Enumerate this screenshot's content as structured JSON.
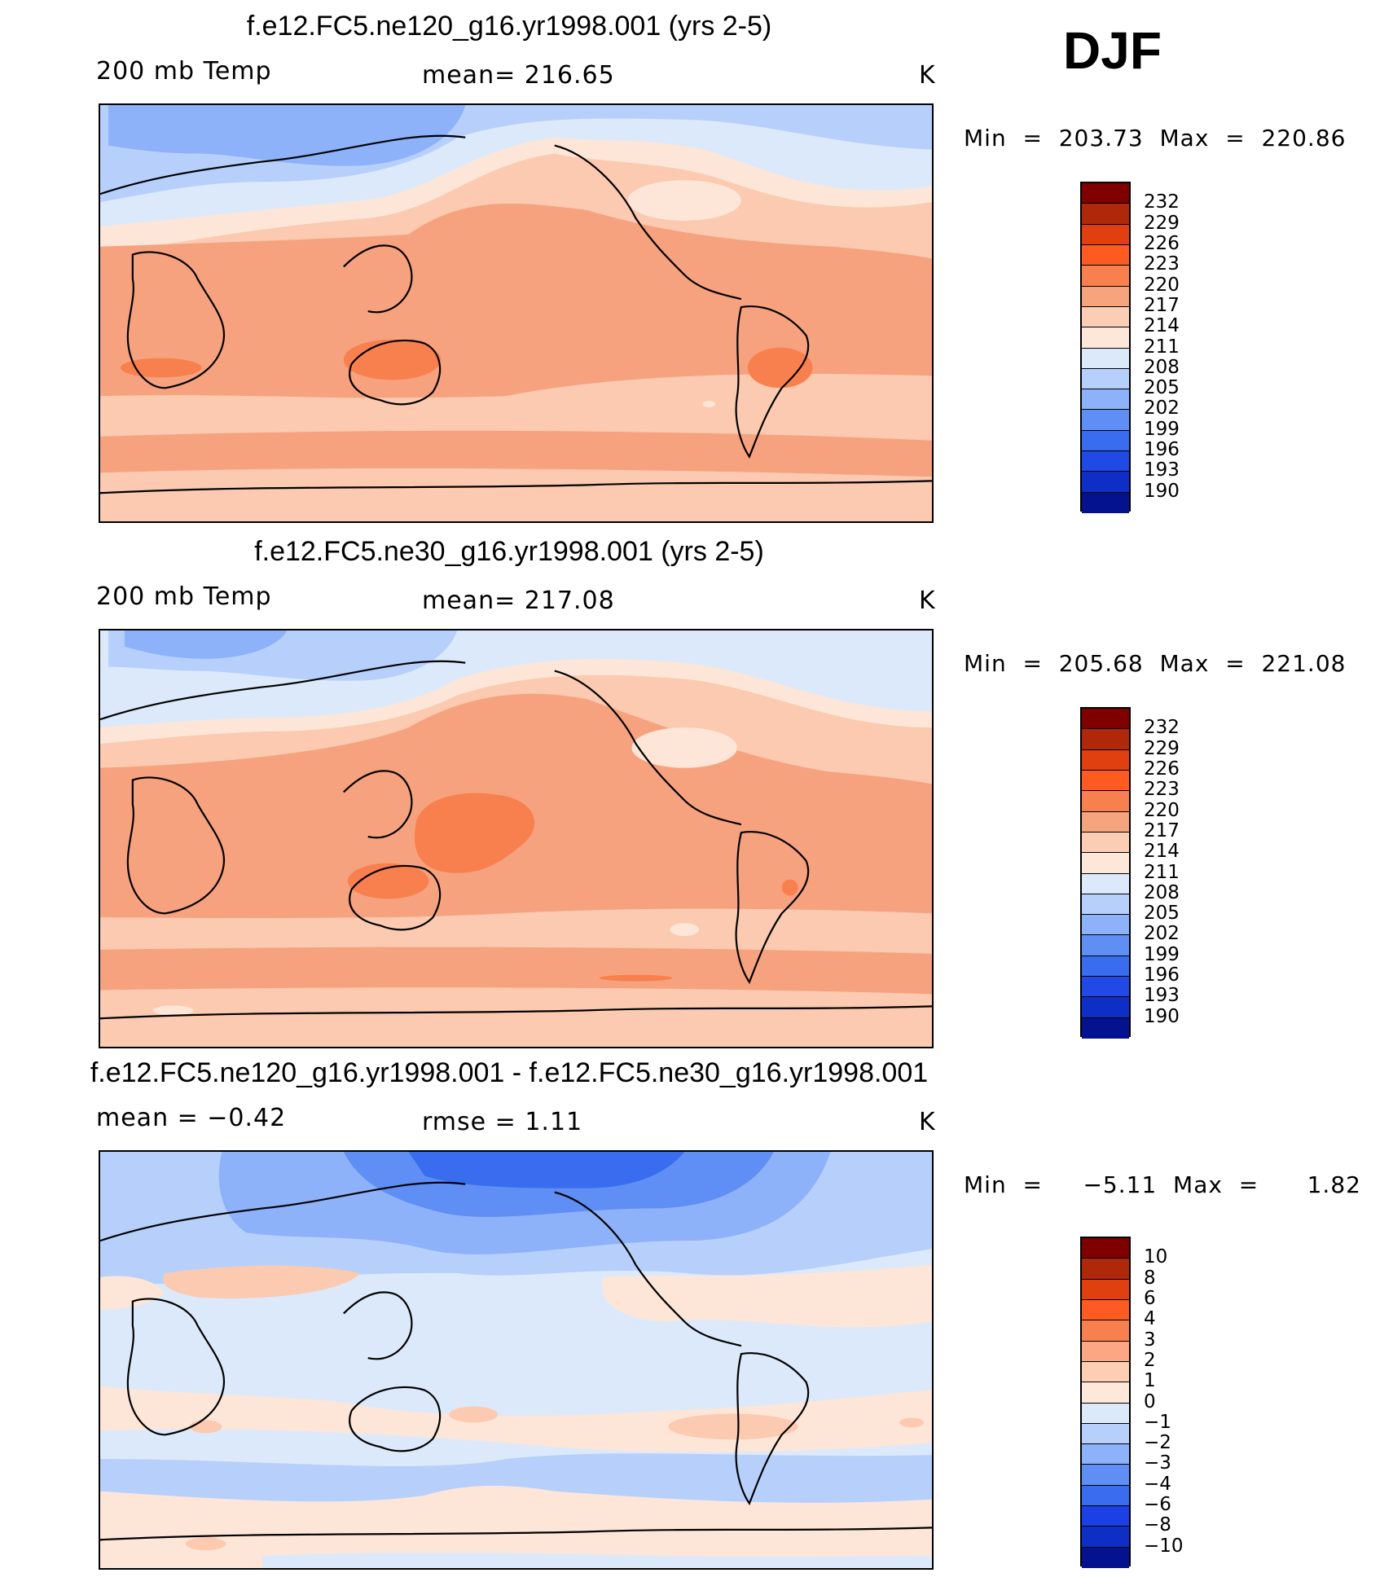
{
  "season": "DJF",
  "panels": [
    {
      "title": "f.e12.FC5.ne120_g16.yr1998.001 (yrs 2-5)",
      "left_label": "200 mb Temp",
      "mid_label": "mean=  216.65",
      "unit": "K",
      "minmax": "Min  =  203.73  Max  =  220.86",
      "colorbar": {
        "labels": [
          "232",
          "229",
          "226",
          "223",
          "220",
          "217",
          "214",
          "211",
          "208",
          "205",
          "202",
          "199",
          "196",
          "193",
          "190"
        ],
        "colors": [
          "#800000",
          "#b0280a",
          "#e0400f",
          "#fd5b22",
          "#f8804f",
          "#f5a47d",
          "#fbcdb4",
          "#fde7d8",
          "#dce9fa",
          "#b7d0fb",
          "#8db2f9",
          "#5f8ff4",
          "#3a6cf0",
          "#2049e6",
          "#0e2fc6",
          "#05128f"
        ]
      },
      "map_palette": {
        "band_warm": "#f6a27e",
        "band_mid": "#fbcab0",
        "band_light": "#fde6d8",
        "cold1": "#dce9fa",
        "cold2": "#b7d0fb",
        "cold3": "#8db2f9",
        "hot": "#f8804f"
      }
    },
    {
      "title": "f.e12.FC5.ne30_g16.yr1998.001 (yrs 2-5)",
      "left_label": "200 mb Temp",
      "mid_label": "mean=  217.08",
      "unit": "K",
      "minmax": "Min  =  205.68  Max  =  221.08",
      "colorbar": {
        "labels": [
          "232",
          "229",
          "226",
          "223",
          "220",
          "217",
          "214",
          "211",
          "208",
          "205",
          "202",
          "199",
          "196",
          "193",
          "190"
        ],
        "colors": [
          "#800000",
          "#b0280a",
          "#e0400f",
          "#fd5b22",
          "#f8804f",
          "#f5a47d",
          "#fbcdb4",
          "#fde7d8",
          "#dce9fa",
          "#b7d0fb",
          "#8db2f9",
          "#5f8ff4",
          "#3a6cf0",
          "#2049e6",
          "#0e2fc6",
          "#05128f"
        ]
      }
    },
    {
      "title": "f.e12.FC5.ne120_g16.yr1998.001 - f.e12.FC5.ne30_g16.yr1998.001",
      "left_label": "mean  =    −0.42",
      "mid_label": "rmse  =      1.11",
      "unit": "K",
      "minmax": "Min  =     −5.11  Max  =      1.82",
      "colorbar": {
        "labels": [
          "10",
          "8",
          "6",
          "4",
          "3",
          "2",
          "1",
          "0",
          "−1",
          "−2",
          "−3",
          "−4",
          "−6",
          "−8",
          "−10"
        ],
        "colors": [
          "#800000",
          "#b0280a",
          "#e0400f",
          "#fd5b22",
          "#f8804f",
          "#fca683",
          "#fdcdb4",
          "#fde8da",
          "#dce9fa",
          "#b7d0fb",
          "#8db2f9",
          "#5f8ff4",
          "#3a6cf0",
          "#1a40e6",
          "#0e2fc6",
          "#05128f"
        ]
      }
    }
  ]
}
